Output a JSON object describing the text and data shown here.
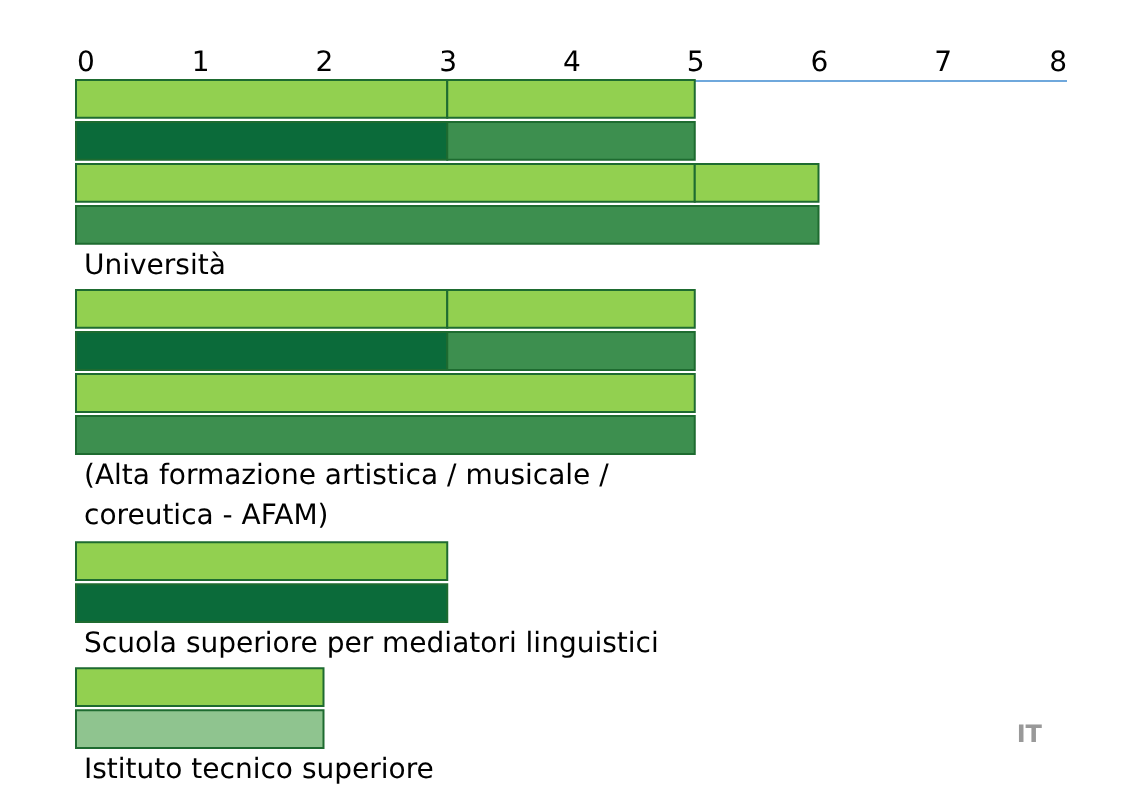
{
  "chart_data": {
    "type": "bar",
    "orientation": "horizontal",
    "stacked": true,
    "categories": [
      null,
      null,
      null,
      null,
      "Università",
      null,
      null,
      null,
      null,
      "(Alta formazione artistica / musicale / coreutica - AFAM)",
      null,
      null,
      null,
      "Scuola superiore per mediatori linguistici",
      null,
      null,
      "Istituto tecnico superiore"
    ],
    "series": [
      {
        "values": [
          3,
          3,
          5,
          6,
          null,
          3,
          3,
          5,
          5,
          null,
          null,
          3,
          3,
          null,
          2,
          2,
          null
        ],
        "colors": [
          "#92d050",
          "#0b6b3a",
          "#92d050",
          "#3d8f4f",
          null,
          "#92d050",
          "#0b6b3a",
          "#92d050",
          "#3d8f4f",
          null,
          null,
          "#92d050",
          "#0b6b3a",
          null,
          "#92d050",
          "#8fc48f",
          null
        ]
      },
      {
        "values": [
          2,
          2,
          1,
          null,
          null,
          2,
          2,
          null,
          null,
          null,
          null,
          null,
          null,
          null,
          null,
          null,
          null
        ],
        "colors": [
          "#92d050",
          "#3d8f4f",
          "#92d050",
          null,
          null,
          "#92d050",
          "#3d8f4f",
          null,
          null,
          null,
          null,
          null,
          null,
          null,
          null,
          null,
          null
        ]
      }
    ],
    "xlim": [
      0,
      8
    ],
    "xticks": [
      0,
      1,
      2,
      3,
      4,
      5,
      6,
      7,
      8
    ],
    "annotations": [
      "IT"
    ]
  }
}
